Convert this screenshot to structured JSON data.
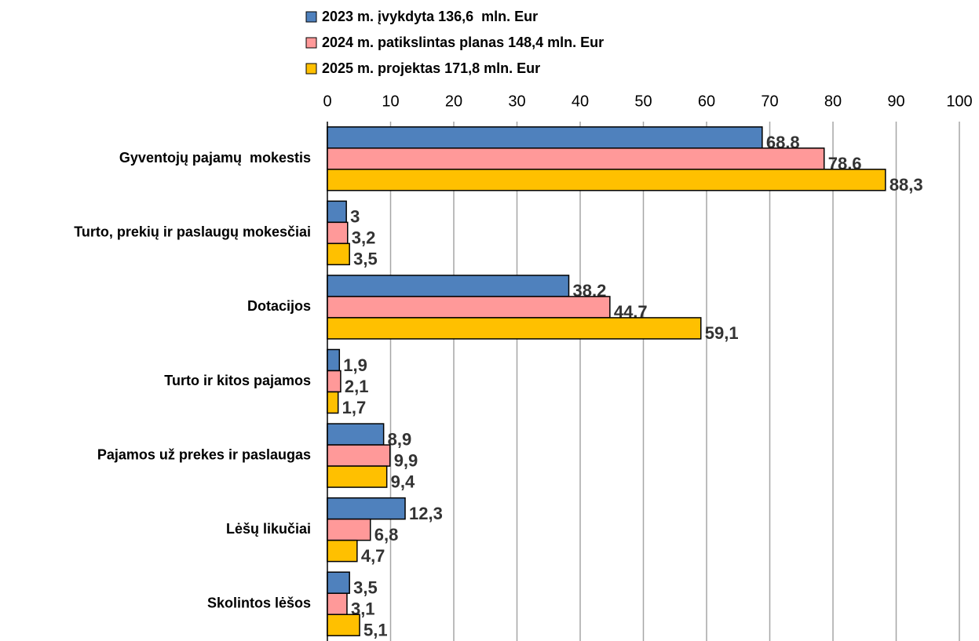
{
  "chart_data": {
    "type": "bar",
    "orientation": "horizontal",
    "categories": [
      "Gyventojų pajamų  mokestis",
      "Turto, prekių ir paslaugų mokesčiai",
      "Dotacijos",
      "Turto ir kitos pajamos",
      "Pajamos už prekes ir paslaugas",
      "Lėšų likučiai",
      "Skolintos lėšos"
    ],
    "series": [
      {
        "name": "2023 m. įvykdyta 136,6  mln. Eur",
        "color": "#4f81bd",
        "values": [
          68.8,
          3,
          38.2,
          1.9,
          8.9,
          12.3,
          3.5
        ],
        "value_labels": [
          "68,8",
          "3",
          "38,2",
          "1,9",
          "8,9",
          "12,3",
          "3,5"
        ]
      },
      {
        "name": "2024 m. patikslintas planas 148,4 mln. Eur",
        "color": "#ff9999",
        "values": [
          78.6,
          3.2,
          44.7,
          2.1,
          9.9,
          6.8,
          3.1
        ],
        "value_labels": [
          "78,6",
          "3,2",
          "44,7",
          "2,1",
          "9,9",
          "6,8",
          "3,1"
        ]
      },
      {
        "name": "2025 m. projektas 171,8 mln. Eur",
        "color": "#ffc000",
        "values": [
          88.3,
          3.5,
          59.1,
          1.7,
          9.4,
          4.7,
          5.1
        ],
        "value_labels": [
          "88,3",
          "3,5",
          "59,1",
          "1,7",
          "9,4",
          "4,7",
          "5,1"
        ]
      }
    ],
    "xlim": [
      0,
      100
    ],
    "xticks": [
      0,
      10,
      20,
      30,
      40,
      50,
      60,
      70,
      80,
      90,
      100
    ],
    "grid": true,
    "legend": "top"
  }
}
